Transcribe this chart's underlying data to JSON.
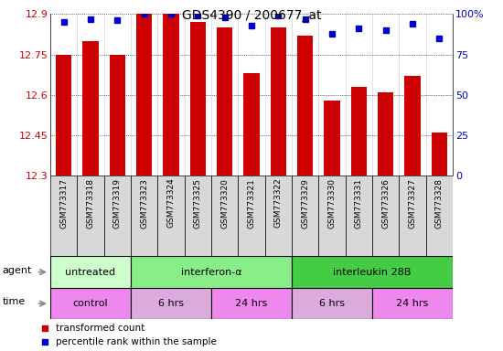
{
  "title": "GDS4390 / 200677_at",
  "samples": [
    "GSM773317",
    "GSM773318",
    "GSM773319",
    "GSM773323",
    "GSM773324",
    "GSM773325",
    "GSM773320",
    "GSM773321",
    "GSM773322",
    "GSM773329",
    "GSM773330",
    "GSM773331",
    "GSM773326",
    "GSM773327",
    "GSM773328"
  ],
  "transformed_counts": [
    12.75,
    12.8,
    12.75,
    12.9,
    12.9,
    12.87,
    12.85,
    12.68,
    12.85,
    12.82,
    12.58,
    12.63,
    12.61,
    12.67,
    12.46
  ],
  "percentile_ranks": [
    95,
    97,
    96,
    100,
    100,
    99,
    98,
    93,
    99,
    97,
    88,
    91,
    90,
    94,
    85
  ],
  "ymin": 12.3,
  "ymax": 12.9,
  "yticks": [
    12.3,
    12.45,
    12.6,
    12.75,
    12.9
  ],
  "y2min": 0,
  "y2max": 100,
  "y2ticks": [
    0,
    25,
    50,
    75,
    100
  ],
  "bar_color": "#cc0000",
  "dot_color": "#0000cc",
  "agent_groups": [
    {
      "label": "untreated",
      "start": 0,
      "end": 3,
      "color": "#ccffcc"
    },
    {
      "label": "interferon-α",
      "start": 3,
      "end": 9,
      "color": "#88ee88"
    },
    {
      "label": "interleukin 28B",
      "start": 9,
      "end": 15,
      "color": "#44cc44"
    }
  ],
  "time_groups": [
    {
      "label": "control",
      "start": 0,
      "end": 3,
      "color": "#ee88ee"
    },
    {
      "label": "6 hrs",
      "start": 3,
      "end": 6,
      "color": "#ddaadd"
    },
    {
      "label": "24 hrs",
      "start": 6,
      "end": 9,
      "color": "#ee88ee"
    },
    {
      "label": "6 hrs",
      "start": 9,
      "end": 12,
      "color": "#ddaadd"
    },
    {
      "label": "24 hrs",
      "start": 12,
      "end": 15,
      "color": "#ee88ee"
    }
  ]
}
